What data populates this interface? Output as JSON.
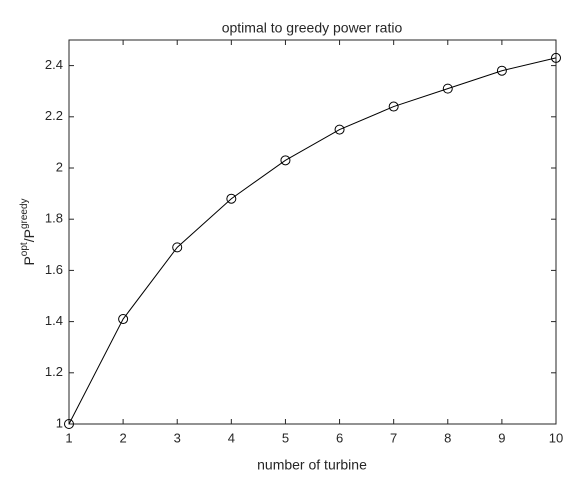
{
  "chart_data": {
    "type": "line",
    "title": "optimal to greedy power ratio",
    "xlabel": "number of turbine",
    "ylabel": {
      "base": "P",
      "sup": "opt",
      "mid": "/P",
      "sup2": "greedy"
    },
    "x": [
      1,
      2,
      3,
      4,
      5,
      6,
      7,
      8,
      9,
      10
    ],
    "values": [
      1.0,
      1.41,
      1.69,
      1.88,
      2.03,
      2.15,
      2.24,
      2.31,
      2.38,
      2.43
    ],
    "color": "#000000",
    "marker": "circle",
    "xlim": [
      1,
      10
    ],
    "ylim": [
      1,
      2.5
    ],
    "xticks": [
      1,
      2,
      3,
      4,
      5,
      6,
      7,
      8,
      9,
      10
    ],
    "yticks": [
      1,
      1.2,
      1.4,
      1.6,
      1.8,
      2,
      2.2,
      2.4
    ],
    "grid": false
  }
}
